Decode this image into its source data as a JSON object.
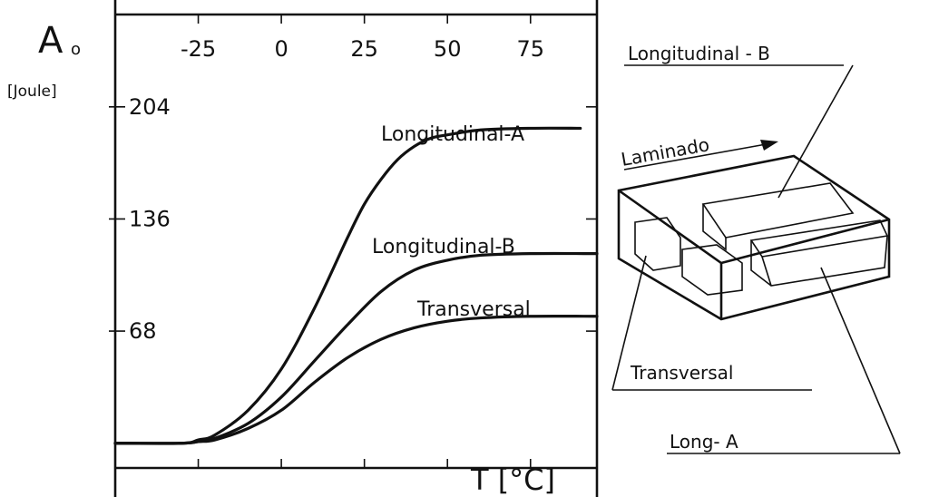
{
  "chart_data": {
    "type": "line",
    "y_axis_symbol": "A",
    "y_axis_symbol_sub": "o",
    "y_axis_unit": "[Joule]",
    "x_axis_label": "T [°C]",
    "x_ticks": [
      "-25",
      "0",
      "25",
      "50",
      "75"
    ],
    "y_ticks": [
      "204",
      "136",
      "68"
    ],
    "xlim": [
      -50,
      95
    ],
    "ylim": [
      -15,
      260
    ],
    "series": [
      {
        "name": "Longitudinal-A",
        "x": [
          -50,
          -30,
          -25,
          -20,
          -10,
          0,
          10,
          20,
          25,
          30,
          35,
          40,
          45,
          50,
          60,
          75,
          90
        ],
        "y": [
          0,
          0,
          2,
          5,
          20,
          45,
          82,
          125,
          145,
          160,
          172,
          180,
          185,
          187,
          190,
          191,
          191
        ]
      },
      {
        "name": "Longitudinal-B",
        "x": [
          -50,
          -30,
          -25,
          -20,
          -10,
          0,
          10,
          20,
          30,
          40,
          50,
          60,
          75,
          95
        ],
        "y": [
          0,
          0,
          1,
          3,
          12,
          28,
          50,
          72,
          92,
          105,
          111,
          114,
          115,
          115
        ]
      },
      {
        "name": "Transversal",
        "x": [
          -50,
          -30,
          -25,
          -20,
          -10,
          0,
          10,
          20,
          30,
          40,
          50,
          60,
          75,
          95
        ],
        "y": [
          0,
          0,
          1,
          2,
          9,
          20,
          37,
          52,
          63,
          70,
          74,
          76,
          77,
          77
        ]
      }
    ]
  },
  "diagram": {
    "direction_label": "Laminado",
    "labels": [
      "Longitudinal - B",
      "Transversal",
      "Long- A"
    ]
  }
}
